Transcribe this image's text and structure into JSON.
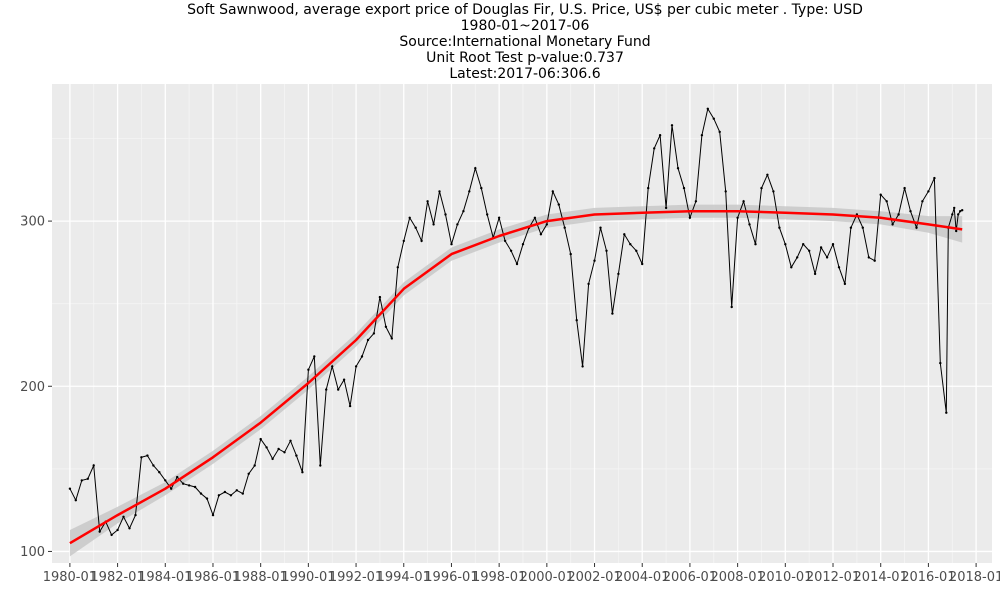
{
  "chart_data": {
    "type": "line",
    "title_lines": [
      "Soft Sawnwood, average export price of Douglas Fir, U.S. Price, US$ per cubic meter . Type: USD",
      "1980-01~2017-06",
      "Source:International Monetary Fund",
      "Unit Root Test p-value:0.737",
      "Latest:2017-06:306.6"
    ],
    "xlabel": "",
    "ylabel": "",
    "x_range": [
      "1979-04",
      "2018-09"
    ],
    "ylim": [
      93,
      383
    ],
    "x_ticks": [
      "1980-01",
      "1982-01",
      "1984-01",
      "1986-01",
      "1988-01",
      "1990-01",
      "1992-01",
      "1994-01",
      "1996-01",
      "1998-01",
      "2000-01",
      "2002-01",
      "2004-01",
      "2006-01",
      "2008-01",
      "2010-01",
      "2012-01",
      "2014-01",
      "2016-01",
      "2018-01"
    ],
    "y_ticks": [
      100,
      200,
      300
    ],
    "grid": true,
    "colors": {
      "panel": "#ebebeb",
      "grid_major": "#ffffff",
      "grid_minor": "#f5f5f5",
      "line": "#000000",
      "smooth": "#ff0000",
      "band": "#c8c8c8"
    },
    "series": [
      {
        "points": [
          [
            "1980-01",
            138
          ],
          [
            "1980-04",
            131
          ],
          [
            "1980-07",
            143
          ],
          [
            "1980-10",
            144
          ],
          [
            "1981-01",
            152
          ],
          [
            "1981-04",
            112
          ],
          [
            "1981-07",
            118
          ],
          [
            "1981-10",
            110
          ],
          [
            "1982-01",
            113
          ],
          [
            "1982-04",
            121
          ],
          [
            "1982-07",
            114
          ],
          [
            "1982-10",
            122
          ],
          [
            "1983-01",
            157
          ],
          [
            "1983-04",
            158
          ],
          [
            "1983-07",
            152
          ],
          [
            "1983-10",
            148
          ],
          [
            "1984-01",
            143
          ],
          [
            "1984-04",
            138
          ],
          [
            "1984-07",
            145
          ],
          [
            "1984-10",
            141
          ],
          [
            "1985-01",
            140
          ],
          [
            "1985-04",
            139
          ],
          [
            "1985-07",
            135
          ],
          [
            "1985-10",
            132
          ],
          [
            "1986-01",
            122
          ],
          [
            "1986-04",
            134
          ],
          [
            "1986-07",
            136
          ],
          [
            "1986-10",
            134
          ],
          [
            "1987-01",
            137
          ],
          [
            "1987-04",
            135
          ],
          [
            "1987-07",
            147
          ],
          [
            "1987-10",
            152
          ],
          [
            "1988-01",
            168
          ],
          [
            "1988-04",
            163
          ],
          [
            "1988-07",
            156
          ],
          [
            "1988-10",
            162
          ],
          [
            "1989-01",
            160
          ],
          [
            "1989-04",
            167
          ],
          [
            "1989-07",
            158
          ],
          [
            "1989-10",
            148
          ],
          [
            "1990-01",
            210
          ],
          [
            "1990-04",
            218
          ],
          [
            "1990-07",
            152
          ],
          [
            "1990-10",
            198
          ],
          [
            "1991-01",
            212
          ],
          [
            "1991-04",
            198
          ],
          [
            "1991-07",
            204
          ],
          [
            "1991-10",
            188
          ],
          [
            "1992-01",
            212
          ],
          [
            "1992-04",
            218
          ],
          [
            "1992-07",
            228
          ],
          [
            "1992-10",
            232
          ],
          [
            "1993-01",
            254
          ],
          [
            "1993-04",
            236
          ],
          [
            "1993-07",
            229
          ],
          [
            "1993-10",
            272
          ],
          [
            "1994-01",
            288
          ],
          [
            "1994-04",
            302
          ],
          [
            "1994-07",
            296
          ],
          [
            "1994-10",
            288
          ],
          [
            "1995-01",
            312
          ],
          [
            "1995-04",
            298
          ],
          [
            "1995-07",
            318
          ],
          [
            "1995-10",
            304
          ],
          [
            "1996-01",
            286
          ],
          [
            "1996-04",
            298
          ],
          [
            "1996-07",
            306
          ],
          [
            "1996-10",
            318
          ],
          [
            "1997-01",
            332
          ],
          [
            "1997-04",
            320
          ],
          [
            "1997-07",
            304
          ],
          [
            "1997-10",
            290
          ],
          [
            "1998-01",
            302
          ],
          [
            "1998-04",
            288
          ],
          [
            "1998-07",
            282
          ],
          [
            "1998-10",
            274
          ],
          [
            "1999-01",
            286
          ],
          [
            "1999-04",
            296
          ],
          [
            "1999-07",
            302
          ],
          [
            "1999-10",
            292
          ],
          [
            "2000-01",
            298
          ],
          [
            "2000-04",
            318
          ],
          [
            "2000-07",
            310
          ],
          [
            "2000-10",
            296
          ],
          [
            "2001-01",
            280
          ],
          [
            "2001-04",
            240
          ],
          [
            "2001-07",
            212
          ],
          [
            "2001-10",
            262
          ],
          [
            "2002-01",
            276
          ],
          [
            "2002-04",
            296
          ],
          [
            "2002-07",
            282
          ],
          [
            "2002-10",
            244
          ],
          [
            "2003-01",
            268
          ],
          [
            "2003-04",
            292
          ],
          [
            "2003-07",
            286
          ],
          [
            "2003-10",
            282
          ],
          [
            "2004-01",
            274
          ],
          [
            "2004-04",
            320
          ],
          [
            "2004-07",
            344
          ],
          [
            "2004-10",
            352
          ],
          [
            "2005-01",
            308
          ],
          [
            "2005-04",
            358
          ],
          [
            "2005-07",
            332
          ],
          [
            "2005-10",
            320
          ],
          [
            "2006-01",
            302
          ],
          [
            "2006-04",
            312
          ],
          [
            "2006-07",
            352
          ],
          [
            "2006-10",
            368
          ],
          [
            "2007-01",
            362
          ],
          [
            "2007-04",
            354
          ],
          [
            "2007-07",
            318
          ],
          [
            "2007-10",
            248
          ],
          [
            "2008-01",
            302
          ],
          [
            "2008-04",
            312
          ],
          [
            "2008-07",
            298
          ],
          [
            "2008-10",
            286
          ],
          [
            "2009-01",
            320
          ],
          [
            "2009-04",
            328
          ],
          [
            "2009-07",
            318
          ],
          [
            "2009-10",
            296
          ],
          [
            "2010-01",
            286
          ],
          [
            "2010-04",
            272
          ],
          [
            "2010-07",
            278
          ],
          [
            "2010-10",
            286
          ],
          [
            "2011-01",
            282
          ],
          [
            "2011-04",
            268
          ],
          [
            "2011-07",
            284
          ],
          [
            "2011-10",
            278
          ],
          [
            "2012-01",
            286
          ],
          [
            "2012-04",
            272
          ],
          [
            "2012-07",
            262
          ],
          [
            "2012-10",
            296
          ],
          [
            "2013-01",
            304
          ],
          [
            "2013-04",
            296
          ],
          [
            "2013-07",
            278
          ],
          [
            "2013-10",
            276
          ],
          [
            "2014-01",
            316
          ],
          [
            "2014-04",
            312
          ],
          [
            "2014-07",
            298
          ],
          [
            "2014-10",
            304
          ],
          [
            "2015-01",
            320
          ],
          [
            "2015-04",
            306
          ],
          [
            "2015-07",
            296
          ],
          [
            "2015-10",
            312
          ],
          [
            "2016-01",
            318
          ],
          [
            "2016-04",
            326
          ],
          [
            "2016-07",
            214
          ],
          [
            "2016-10",
            184
          ],
          [
            "2016-11",
            296
          ],
          [
            "2017-01",
            304
          ],
          [
            "2017-02",
            308
          ],
          [
            "2017-03",
            294
          ],
          [
            "2017-04",
            304
          ],
          [
            "2017-05",
            306
          ],
          [
            "2017-06",
            306.6
          ]
        ]
      }
    ],
    "smooth": {
      "points": [
        [
          "1980-01",
          105
        ],
        [
          "1982-01",
          122
        ],
        [
          "1984-01",
          138
        ],
        [
          "1986-01",
          157
        ],
        [
          "1988-01",
          178
        ],
        [
          "1990-01",
          202
        ],
        [
          "1992-01",
          228
        ],
        [
          "1994-01",
          259
        ],
        [
          "1996-01",
          280
        ],
        [
          "1998-01",
          291
        ],
        [
          "2000-01",
          300
        ],
        [
          "2002-01",
          304
        ],
        [
          "2004-01",
          305
        ],
        [
          "2006-01",
          306
        ],
        [
          "2008-01",
          306
        ],
        [
          "2010-01",
          305
        ],
        [
          "2012-01",
          304
        ],
        [
          "2014-01",
          302
        ],
        [
          "2016-01",
          298
        ],
        [
          "2017-06",
          295
        ]
      ],
      "band_halfwidth": [
        8,
        5,
        4,
        4,
        4,
        4,
        4,
        4,
        4,
        4,
        4,
        4,
        4,
        4,
        4,
        4,
        4,
        4,
        5,
        8
      ]
    }
  }
}
